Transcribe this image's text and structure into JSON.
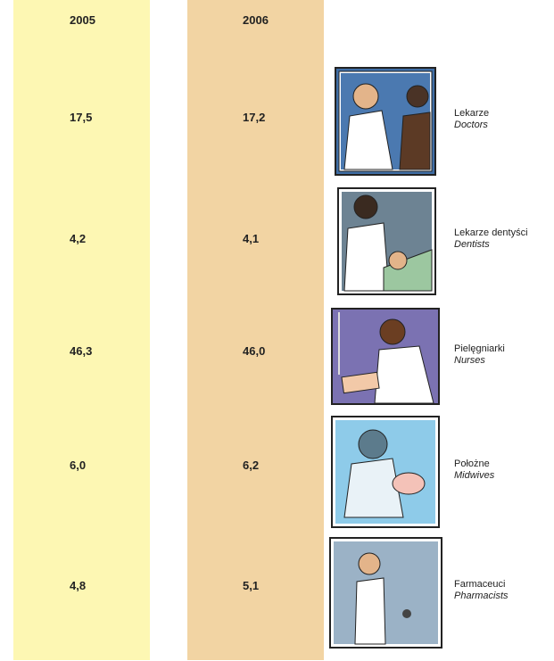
{
  "table": {
    "columns": [
      "2005",
      "2006"
    ],
    "rows": [
      {
        "values": [
          "17,5",
          "17,2"
        ],
        "label": "Lekarze",
        "label_en": "Doctors"
      },
      {
        "values": [
          "4,2",
          "4,1"
        ],
        "label": "Lekarze dentyści",
        "label_en": "Dentists"
      },
      {
        "values": [
          "46,3",
          "46,0"
        ],
        "label": "Pielęgniarki",
        "label_en": "Nurses"
      },
      {
        "values": [
          "6,0",
          "6,2"
        ],
        "label": "Położne",
        "label_en": "Midwives"
      },
      {
        "values": [
          "4,8",
          "5,1"
        ],
        "label": "Farmaceuci",
        "label_en": "Pharmacists"
      }
    ]
  }
}
